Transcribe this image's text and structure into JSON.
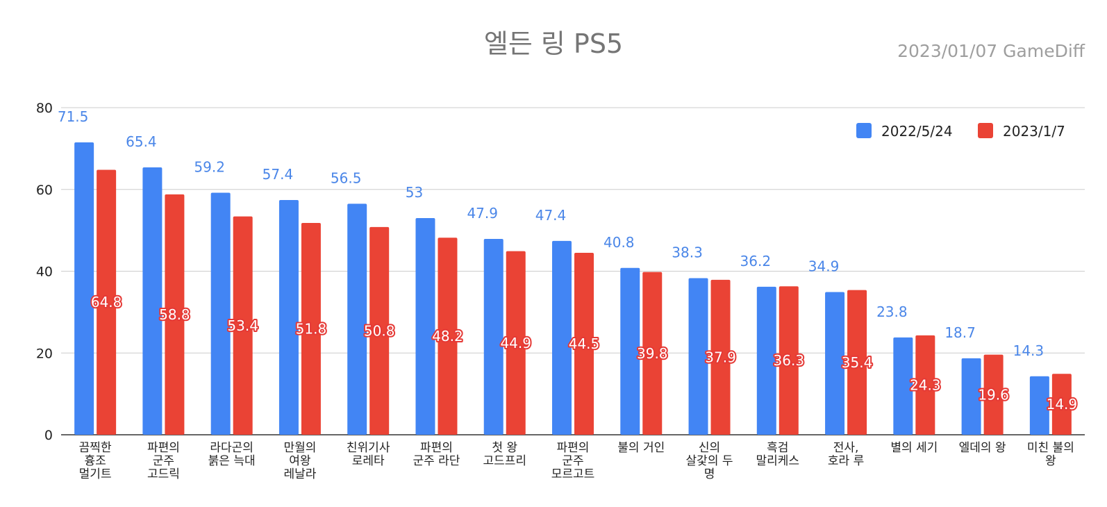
{
  "chart_data": {
    "type": "bar",
    "title": "엘든 링 PS5",
    "subtitle": "2023/01/07  GameDiff",
    "xlabel": "",
    "ylabel": "",
    "ylim": [
      0,
      80
    ],
    "yticks": [
      0,
      20,
      40,
      60,
      80
    ],
    "grid": true,
    "legend_position": "top-right",
    "categories": [
      [
        "끔찍한",
        "흉조",
        "멀기트"
      ],
      [
        "파편의",
        "군주",
        "고드릭"
      ],
      [
        "라다곤의",
        "붉은 늑대"
      ],
      [
        "만월의",
        "여왕",
        "레날라"
      ],
      [
        "친위기사",
        "로레타"
      ],
      [
        "파편의",
        "군주 라단"
      ],
      [
        "첫 왕",
        "고드프리"
      ],
      [
        "파편의",
        "군주",
        "모르고트"
      ],
      [
        "불의 거인"
      ],
      [
        "신의",
        "살갗의 두",
        "명"
      ],
      [
        "흑검",
        "말리케스"
      ],
      [
        "전사,",
        "호라 루"
      ],
      [
        "별의 세기"
      ],
      [
        "엘데의 왕"
      ],
      [
        "미친 불의",
        "왕"
      ]
    ],
    "series": [
      {
        "name": "2022/5/24",
        "color": "#4285f4",
        "values": [
          71.5,
          65.4,
          59.2,
          57.4,
          56.5,
          53,
          47.9,
          47.4,
          40.8,
          38.3,
          36.2,
          34.9,
          23.8,
          18.7,
          14.3
        ]
      },
      {
        "name": "2023/1/7",
        "color": "#ea4335",
        "values": [
          64.8,
          58.8,
          53.4,
          51.8,
          50.8,
          48.2,
          44.9,
          44.5,
          39.8,
          37.9,
          36.3,
          35.4,
          24.3,
          19.6,
          14.9
        ]
      }
    ]
  }
}
